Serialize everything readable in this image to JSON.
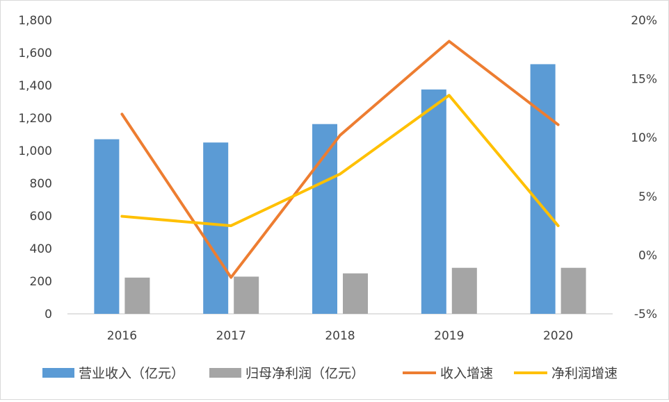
{
  "chart_data": {
    "type": "bar",
    "categories": [
      "2016",
      "2017",
      "2018",
      "2019",
      "2020"
    ],
    "series": [
      {
        "name": "营业收入（亿元）",
        "kind": "bar",
        "axis": "left",
        "color": "#5B9BD5",
        "values": [
          1070,
          1050,
          1163,
          1375,
          1530
        ]
      },
      {
        "name": "归母净利润（亿元）",
        "kind": "bar",
        "axis": "left",
        "color": "#A5A5A5",
        "values": [
          222,
          228,
          248,
          282,
          282
        ]
      },
      {
        "name": "收入增速",
        "kind": "line",
        "axis": "right",
        "color": "#ED7D31",
        "values": [
          12.0,
          -1.9,
          10.2,
          18.2,
          11.1
        ]
      },
      {
        "name": "净利润增速",
        "kind": "line",
        "axis": "right",
        "color": "#FFC000",
        "values": [
          3.3,
          2.5,
          6.9,
          13.6,
          2.5
        ]
      }
    ],
    "y_left": {
      "min": 0,
      "max": 1800,
      "ticks": [
        "0",
        "200",
        "400",
        "600",
        "800",
        "1,000",
        "1,200",
        "1,400",
        "1,600",
        "1,800"
      ]
    },
    "y_right": {
      "min": -5,
      "max": 20,
      "ticks": [
        "-5%",
        "0%",
        "5%",
        "10%",
        "15%",
        "20%"
      ]
    },
    "legend_position": "bottom",
    "grid": false
  }
}
